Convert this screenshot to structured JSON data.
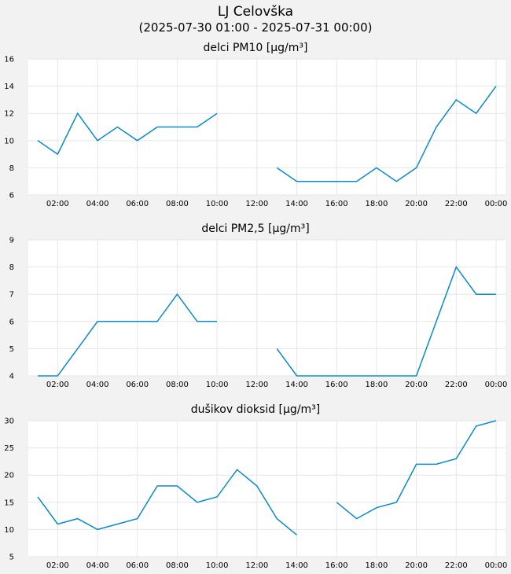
{
  "header": {
    "title": "LJ Celovška",
    "subtitle": "(2025-07-30 01:00 - 2025-07-31 00:00)"
  },
  "colors": {
    "line": "#0a8ad0",
    "grid": "#e6e6e6",
    "background": "#f2f2f2",
    "plot_bg": "#ffffff"
  },
  "chart_data": [
    {
      "type": "line",
      "title": "delci PM10 [µg/m³]",
      "x": [
        "01:00",
        "02:00",
        "03:00",
        "04:00",
        "05:00",
        "06:00",
        "07:00",
        "08:00",
        "09:00",
        "10:00",
        "11:00",
        "12:00",
        "13:00",
        "14:00",
        "15:00",
        "16:00",
        "17:00",
        "18:00",
        "19:00",
        "20:00",
        "21:00",
        "22:00",
        "23:00",
        "00:00"
      ],
      "xticks": [
        "02:00",
        "04:00",
        "06:00",
        "08:00",
        "10:00",
        "12:00",
        "14:00",
        "16:00",
        "18:00",
        "20:00",
        "22:00",
        "00:00"
      ],
      "values": [
        10,
        9,
        12,
        10,
        11,
        10,
        11,
        11,
        11,
        12,
        null,
        null,
        8,
        7,
        7,
        7,
        7,
        8,
        7,
        8,
        11,
        13,
        12,
        14
      ],
      "ylim": [
        6,
        16
      ],
      "yticks": [
        6,
        8,
        10,
        12,
        14,
        16
      ],
      "grid": true
    },
    {
      "type": "line",
      "title": "delci PM2,5 [µg/m³]",
      "x": [
        "01:00",
        "02:00",
        "03:00",
        "04:00",
        "05:00",
        "06:00",
        "07:00",
        "08:00",
        "09:00",
        "10:00",
        "11:00",
        "12:00",
        "13:00",
        "14:00",
        "15:00",
        "16:00",
        "17:00",
        "18:00",
        "19:00",
        "20:00",
        "21:00",
        "22:00",
        "23:00",
        "00:00"
      ],
      "xticks": [
        "02:00",
        "04:00",
        "06:00",
        "08:00",
        "10:00",
        "12:00",
        "14:00",
        "16:00",
        "18:00",
        "20:00",
        "22:00",
        "00:00"
      ],
      "values": [
        4,
        4,
        5,
        6,
        6,
        6,
        6,
        7,
        6,
        6,
        null,
        null,
        5,
        4,
        4,
        4,
        4,
        4,
        4,
        4,
        6,
        8,
        7,
        7
      ],
      "ylim": [
        4,
        9
      ],
      "yticks": [
        4,
        5,
        6,
        7,
        8,
        9
      ],
      "grid": true
    },
    {
      "type": "line",
      "title": "dušikov dioksid [µg/m³]",
      "x": [
        "01:00",
        "02:00",
        "03:00",
        "04:00",
        "05:00",
        "06:00",
        "07:00",
        "08:00",
        "09:00",
        "10:00",
        "11:00",
        "12:00",
        "13:00",
        "14:00",
        "15:00",
        "16:00",
        "17:00",
        "18:00",
        "19:00",
        "20:00",
        "21:00",
        "22:00",
        "23:00",
        "00:00"
      ],
      "xticks": [
        "02:00",
        "04:00",
        "06:00",
        "08:00",
        "10:00",
        "12:00",
        "14:00",
        "16:00",
        "18:00",
        "20:00",
        "22:00",
        "00:00"
      ],
      "values": [
        16,
        11,
        12,
        10,
        11,
        12,
        18,
        18,
        15,
        16,
        21,
        18,
        12,
        9,
        null,
        15,
        12,
        14,
        15,
        22,
        22,
        23,
        29,
        30
      ],
      "ylim": [
        5,
        30
      ],
      "yticks": [
        5,
        10,
        15,
        20,
        25,
        30
      ],
      "grid": true
    }
  ]
}
